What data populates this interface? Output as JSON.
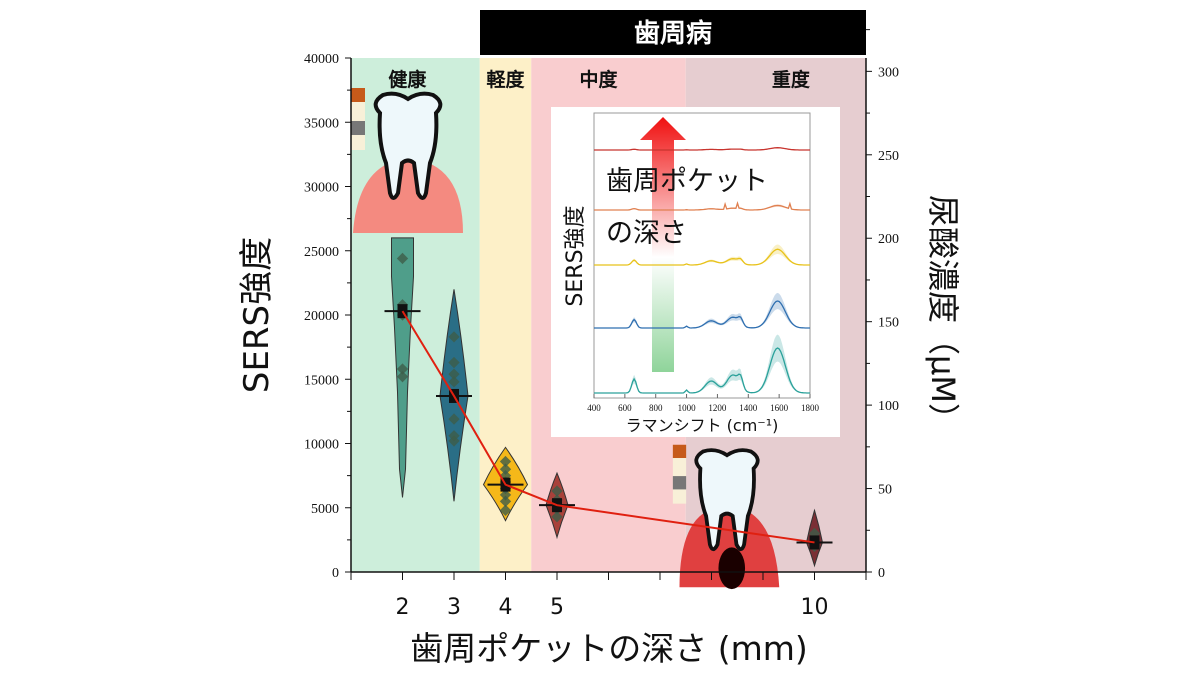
{
  "chart_data": {
    "type": "violin",
    "header_label": "歯周病",
    "xlabel": "歯周ポケットの深さ (mm)",
    "ylabel": "SERS強度",
    "ylabel_right": "尿酸濃度（μM）",
    "xlim": [
      1,
      11
    ],
    "ylim": [
      0,
      40000
    ],
    "ylim_right": [
      0,
      308
    ],
    "x_ticks": [
      1,
      2,
      3,
      4,
      5,
      6,
      7,
      8,
      9,
      10,
      11
    ],
    "x_tick_labels": [
      {
        "x": 2,
        "label": "2"
      },
      {
        "x": 3,
        "label": "3"
      },
      {
        "x": 4,
        "label": "4"
      },
      {
        "x": 5,
        "label": "5"
      },
      {
        "x": 10,
        "label": "10"
      }
    ],
    "y_ticks": [
      "0",
      "5000",
      "10000",
      "15000",
      "20000",
      "25000",
      "30000",
      "35000",
      "40000"
    ],
    "y_ticks_right": [
      "0",
      "50",
      "100",
      "150",
      "200",
      "250",
      "300"
    ],
    "regions": [
      {
        "label": "健康",
        "from": 1,
        "to": 3.5,
        "color": "#cdeedb"
      },
      {
        "label": "軽度",
        "from": 3.5,
        "to": 4.5,
        "color": "#fdf0c8"
      },
      {
        "label": "中度",
        "from": 4.5,
        "to": 7.5,
        "color": "#f9cdcf"
      },
      {
        "label": "重度",
        "from": 7.5,
        "to": 11,
        "color": "#e6cdd0"
      }
    ],
    "violins": [
      {
        "x": 2,
        "mean": 20300,
        "min": 5800,
        "max": 26000,
        "color": "#4f9e8a",
        "points": [
          24400,
          20000,
          15800,
          15200,
          20800
        ]
      },
      {
        "x": 3,
        "mean": 13700,
        "min": 5500,
        "max": 22000,
        "color": "#2a6e86",
        "points": [
          18300,
          16300,
          15400,
          14800,
          11900,
          10600,
          10200
        ]
      },
      {
        "x": 4,
        "mean": 6800,
        "min": 4000,
        "max": 9700,
        "color": "#f5b819",
        "points": [
          8600,
          8000,
          7500,
          7000,
          6500,
          6000,
          5500,
          4800
        ]
      },
      {
        "x": 5,
        "mean": 5200,
        "min": 2700,
        "max": 7700,
        "color": "#a8413a",
        "points": [
          6300,
          5600,
          4900,
          4300
        ]
      },
      {
        "x": 10,
        "mean": 2300,
        "min": 500,
        "max": 4800,
        "color": "#7a2f35",
        "points": [
          3000,
          2000
        ]
      }
    ],
    "mean_line_color": "#e02010",
    "inset": {
      "xlabel": "ラマンシフト (cm⁻¹)",
      "ylabel": "SERS強度",
      "arrow_label_1": "歯周ポケット",
      "arrow_label_2": "の深さ",
      "xlim": [
        400,
        1800
      ],
      "x_tick_labels": [
        "400",
        "600",
        "800",
        "1000",
        "1200",
        "1400",
        "1600",
        "1800"
      ],
      "series_colors": [
        "#2aa19a",
        "#2f6fb0",
        "#e8c21a",
        "#e08050",
        "#c8342e"
      ]
    }
  }
}
